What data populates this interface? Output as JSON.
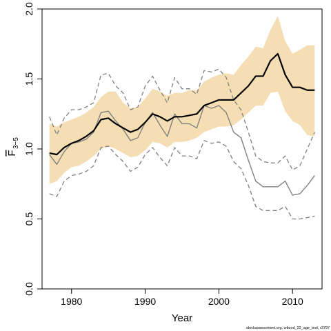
{
  "chart_data": {
    "type": "line",
    "xlabel": "Year",
    "ylabel_main": "F",
    "ylabel_sub": "3−5",
    "footnote": "stockassessment.org, wbcod_22_age_test, r3797",
    "xlim": [
      1976,
      2014
    ],
    "ylim": [
      0.0,
      2.0
    ],
    "x_ticks": [
      1980,
      1990,
      2000,
      2010
    ],
    "y_ticks": [
      0.0,
      0.5,
      1.0,
      1.5,
      2.0
    ],
    "y_tick_labels": [
      "0.0",
      "0.5",
      "1.0",
      "1.5",
      "2.0"
    ],
    "years": [
      1977,
      1978,
      1979,
      1980,
      1981,
      1982,
      1983,
      1984,
      1985,
      1986,
      1987,
      1988,
      1989,
      1990,
      1991,
      1992,
      1993,
      1994,
      1995,
      1996,
      1997,
      1998,
      1999,
      2000,
      2001,
      2002,
      2003,
      2004,
      2005,
      2006,
      2007,
      2008,
      2009,
      2010,
      2011,
      2012,
      2013
    ],
    "series": [
      {
        "role": "estimate",
        "color": "#000000",
        "values": [
          0.97,
          0.96,
          1.01,
          1.04,
          1.06,
          1.09,
          1.13,
          1.21,
          1.22,
          1.18,
          1.15,
          1.12,
          1.14,
          1.19,
          1.25,
          1.23,
          1.2,
          1.23,
          1.23,
          1.24,
          1.25,
          1.31,
          1.33,
          1.35,
          1.35,
          1.35,
          1.4,
          1.45,
          1.52,
          1.52,
          1.63,
          1.68,
          1.53,
          1.44,
          1.44,
          1.42,
          1.42
        ]
      },
      {
        "role": "confidence_upper",
        "color": "#f5deb3",
        "values": [
          1.18,
          1.16,
          1.19,
          1.21,
          1.23,
          1.26,
          1.3,
          1.37,
          1.41,
          1.41,
          1.33,
          1.29,
          1.3,
          1.36,
          1.43,
          1.41,
          1.38,
          1.4,
          1.4,
          1.42,
          1.42,
          1.48,
          1.51,
          1.53,
          1.54,
          1.53,
          1.6,
          1.66,
          1.73,
          1.72,
          1.85,
          1.95,
          1.77,
          1.68,
          1.71,
          1.74,
          1.74
        ]
      },
      {
        "role": "confidence_lower",
        "color": "#f5deb3",
        "values": [
          0.75,
          0.77,
          0.83,
          0.87,
          0.88,
          0.91,
          0.95,
          1.0,
          1.02,
          1.0,
          0.97,
          0.94,
          0.95,
          0.99,
          1.05,
          1.04,
          1.01,
          1.05,
          1.05,
          1.06,
          1.08,
          1.12,
          1.14,
          1.16,
          1.16,
          1.17,
          1.21,
          1.26,
          1.31,
          1.31,
          1.4,
          1.41,
          1.27,
          1.2,
          1.17,
          1.1,
          1.09
        ]
      },
      {
        "role": "retro_estimate",
        "color": "#808080",
        "values": [
          0.96,
          0.89,
          0.98,
          1.04,
          1.05,
          1.07,
          1.12,
          1.26,
          1.27,
          1.2,
          1.14,
          1.06,
          1.08,
          1.19,
          1.26,
          1.17,
          1.09,
          1.25,
          1.18,
          1.18,
          1.15,
          1.31,
          1.29,
          1.31,
          1.26,
          1.12,
          1.08,
          0.92,
          0.77,
          0.73,
          0.73,
          0.73,
          0.77,
          0.67,
          0.68,
          0.74,
          0.81
        ]
      },
      {
        "role": "retro_upper",
        "color": "#808080",
        "values": [
          1.23,
          1.1,
          1.22,
          1.28,
          1.28,
          1.3,
          1.33,
          1.53,
          1.54,
          1.45,
          1.4,
          1.28,
          1.3,
          1.45,
          1.52,
          1.42,
          1.33,
          1.51,
          1.43,
          1.43,
          1.39,
          1.56,
          1.55,
          1.57,
          1.51,
          1.35,
          1.28,
          1.12,
          0.95,
          0.91,
          0.9,
          0.9,
          0.95,
          0.85,
          0.88,
          1.0,
          1.12
        ]
      },
      {
        "role": "retro_lower",
        "color": "#808080",
        "values": [
          0.68,
          0.66,
          0.77,
          0.81,
          0.82,
          0.84,
          0.88,
          1.01,
          1.02,
          0.96,
          0.91,
          0.84,
          0.87,
          0.96,
          1.01,
          0.94,
          0.88,
          1.01,
          0.95,
          0.95,
          0.93,
          1.06,
          1.04,
          1.05,
          1.02,
          0.91,
          0.86,
          0.74,
          0.59,
          0.56,
          0.56,
          0.56,
          0.59,
          0.5,
          0.5,
          0.51,
          0.52
        ]
      }
    ]
  }
}
